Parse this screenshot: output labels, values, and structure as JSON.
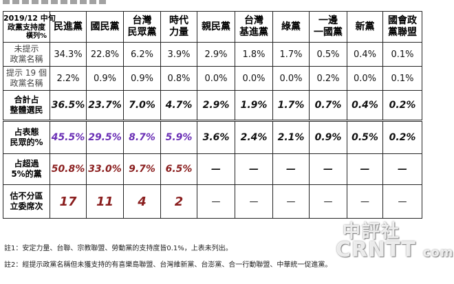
{
  "corner": {
    "line1": "2019/12 中旬",
    "line2": "政黨支持度",
    "line3": "橫列%"
  },
  "columns": [
    {
      "l1": "民進黨",
      "l2": ""
    },
    {
      "l1": "國民黨",
      "l2": ""
    },
    {
      "l1": "台灣",
      "l2": "民眾黨"
    },
    {
      "l1": "時代",
      "l2": "力量"
    },
    {
      "l1": "親民黨",
      "l2": ""
    },
    {
      "l1": "台灣",
      "l2": "基進黨"
    },
    {
      "l1": "綠黨",
      "l2": ""
    },
    {
      "l1": "一邊",
      "l2": "一國黨"
    },
    {
      "l1": "新黨",
      "l2": ""
    },
    {
      "l1": "國會政",
      "l2": "黨聯盟"
    }
  ],
  "rows": [
    {
      "l1": "未提示",
      "l2": "政黨名稱",
      "values": [
        "34.3%",
        "22.8%",
        "6.2%",
        "3.9%",
        "2.9%",
        "1.8%",
        "1.7%",
        "0.5%",
        "0.4%",
        "0.1%"
      ]
    },
    {
      "l1": "提示 19 個",
      "l2": "政黨名稱",
      "values": [
        "2.2%",
        "0.9%",
        "0.9%",
        "0.8%",
        "0.0%",
        "0.0%",
        "0.0%",
        "0.2%",
        "0.0%",
        "0.1%"
      ]
    },
    {
      "l1": "合計占",
      "l2": "整體選民",
      "values": [
        "36.5%",
        "23.7%",
        "7.0%",
        "4.7%",
        "2.9%",
        "1.9%",
        "1.7%",
        "0.7%",
        "0.4%",
        "0.2%"
      ]
    },
    {
      "l1": "占表態",
      "l2": "民眾的%",
      "values": [
        "45.5%",
        "29.5%",
        "8.7%",
        "5.9%",
        "3.6%",
        "2.4%",
        "2.1%",
        "0.9%",
        "0.5%",
        "0.2%"
      ]
    },
    {
      "l1": "占超過",
      "l2": "5%的黨",
      "values": [
        "50.8%",
        "33.0%",
        "9.7%",
        "6.5%",
        "—",
        "—",
        "—",
        "—",
        "—",
        "—"
      ]
    },
    {
      "l1": "估不分區",
      "l2": "立委席次",
      "values": [
        "17",
        "11",
        "4",
        "2",
        "—",
        "—",
        "—",
        "—",
        "—",
        "—"
      ]
    }
  ],
  "notes": {
    "note1": "註1：安定力量、台聯、宗教聯盟、勞動黨的支持度皆0.1%，上表未列出。",
    "note2": "註2：經提示政黨名稱但未獲支持的有喜樂島聯盟、台灣維新黨、台澎黨、合一行動聯盟、中華統一促進黨。"
  },
  "watermark": {
    "cn": "中評社",
    "en": "CRNTT",
    "en_suffix": "com"
  },
  "colors": {
    "purple": "#6a2fb5",
    "darkred": "#8a1e1e"
  }
}
